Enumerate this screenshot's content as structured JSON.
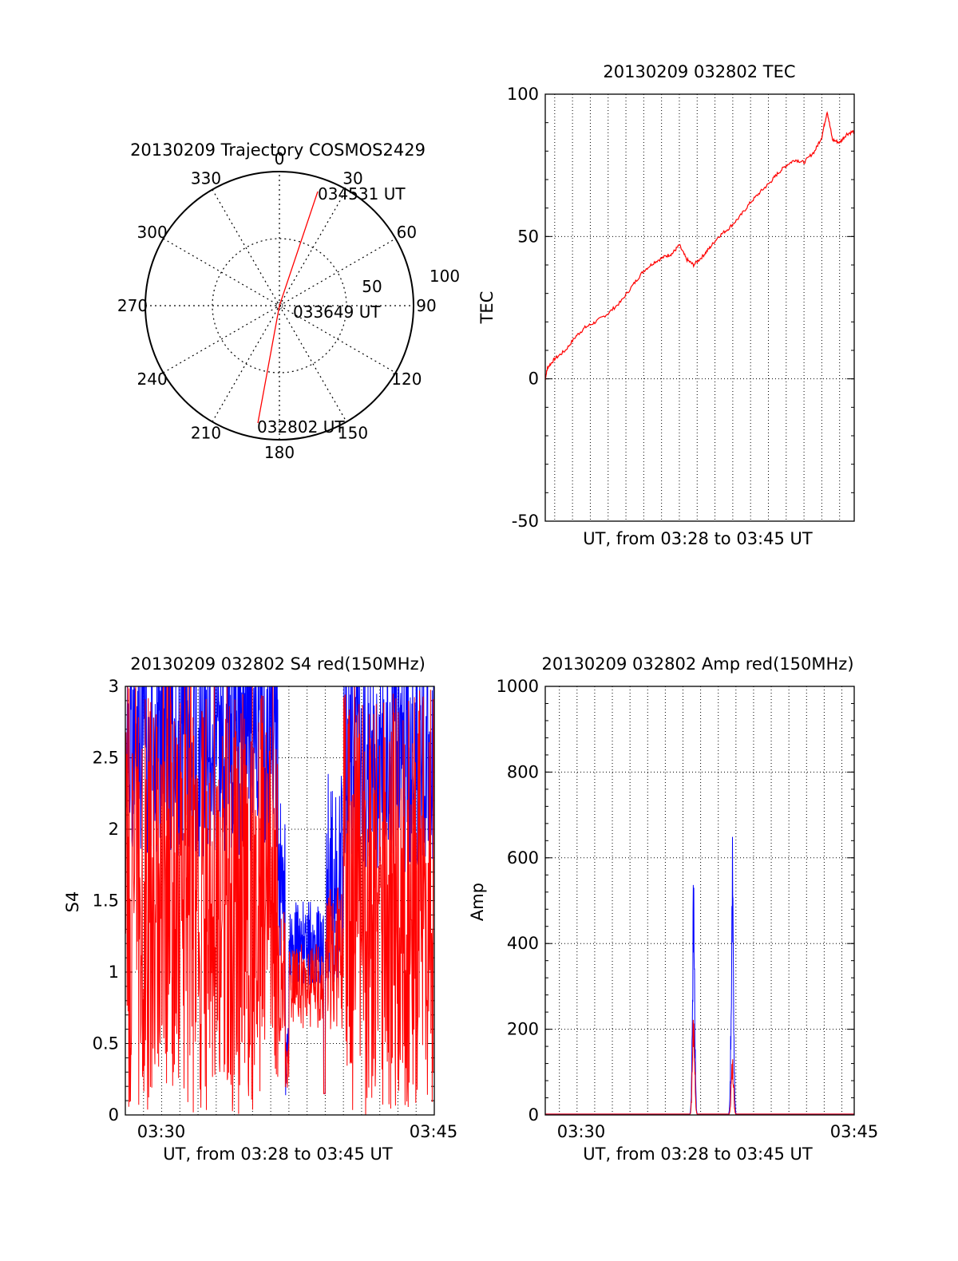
{
  "colors": {
    "red": "#ff0000",
    "blue": "#0000ff",
    "axis": "#000000",
    "grid": "#000000",
    "background": "#ffffff"
  },
  "chart_data": [
    {
      "id": "trajectory",
      "type": "polar",
      "title": "20130209 Trajectory COSMOS2429",
      "angle_labels": [
        "0",
        "30",
        "60",
        "90",
        "120",
        "150",
        "180",
        "210",
        "240",
        "270",
        "300",
        "330"
      ],
      "radial_ticks": [
        "50",
        "100"
      ],
      "radial_max": 100,
      "grid": true,
      "trajectory": [
        {
          "azimuth": 195,
          "radius": 93
        },
        {
          "azimuth": 180,
          "radius": 0
        },
        {
          "azimuth": 18,
          "radius": 87
        }
      ],
      "annotations": [
        {
          "text": "034531 UT",
          "point": "end"
        },
        {
          "text": "033649 UT",
          "point": "middle"
        },
        {
          "text": "032802 UT",
          "point": "start"
        }
      ]
    },
    {
      "id": "tec",
      "type": "line",
      "title": "20130209 032802 TEC",
      "xlabel": "UT, from 03:28 to 03:45 UT",
      "ylabel": "TEC",
      "ylim": [
        -50,
        100
      ],
      "yticks": [
        "100",
        "50",
        "0",
        "-50"
      ],
      "xlim_minutes": [
        3.47,
        20.82
      ],
      "grid": true,
      "series": [
        {
          "color": "#ff0000",
          "x": [
            3.47,
            3.6,
            4.0,
            4.6,
            5.2,
            5.7,
            6.3,
            7.0,
            7.7,
            8.4,
            9.0,
            9.6,
            10.2,
            10.6,
            11.0,
            11.4,
            11.8,
            12.3,
            12.7,
            13.2,
            13.8,
            14.4,
            15.0,
            15.6,
            16.1,
            16.5,
            17.0,
            17.5,
            18.0,
            18.6,
            19.0,
            19.3,
            19.6,
            20.0,
            20.4,
            20.82
          ],
          "y": [
            0,
            4,
            7,
            10,
            15,
            18,
            20,
            23,
            27,
            33,
            38,
            41,
            43,
            44,
            47,
            42,
            40,
            43,
            46,
            50,
            53,
            57,
            62,
            66,
            69,
            72,
            75,
            77,
            76,
            80,
            85,
            94,
            84,
            83,
            86,
            87
          ]
        }
      ]
    },
    {
      "id": "s4",
      "type": "line",
      "title": "20130209 032802 S4 red(150MHz)",
      "xlabel": "UT, from 03:28 to 03:45 UT",
      "ylabel": "S4",
      "ylim": [
        0,
        3
      ],
      "yticks": [
        "3",
        "2.5",
        "2",
        "1.5",
        "1",
        "0.5",
        "0"
      ],
      "xticks": [
        "03:30",
        "03:45"
      ],
      "xtick_minutes": [
        2,
        17
      ],
      "xlim_minutes": [
        0,
        17
      ],
      "grid": true,
      "series": [
        {
          "color": "#0000ff",
          "description_free": true
        },
        {
          "color": "#ff0000",
          "description_free": true
        }
      ]
    },
    {
      "id": "amp",
      "type": "line",
      "title": "20130209 032802 Amp red(150MHz)",
      "xlabel": "UT, from 03:28 to 03:45 UT",
      "ylabel": "Amp",
      "ylim": [
        0,
        1000
      ],
      "yticks": [
        "1000",
        "800",
        "600",
        "400",
        "200",
        "0"
      ],
      "xticks": [
        "03:30",
        "03:45"
      ],
      "xtick_minutes": [
        2,
        17
      ],
      "xlim_minutes": [
        0.2,
        17.7
      ],
      "grid": true,
      "series": [
        {
          "color": "#0000ff",
          "peaks": [
            {
              "x": 8.6,
              "y": 565
            },
            {
              "x": 10.8,
              "y": 660
            }
          ]
        },
        {
          "color": "#ff0000",
          "peaks": [
            {
              "x": 8.6,
              "y": 260
            },
            {
              "x": 10.8,
              "y": 150
            }
          ]
        }
      ]
    }
  ]
}
